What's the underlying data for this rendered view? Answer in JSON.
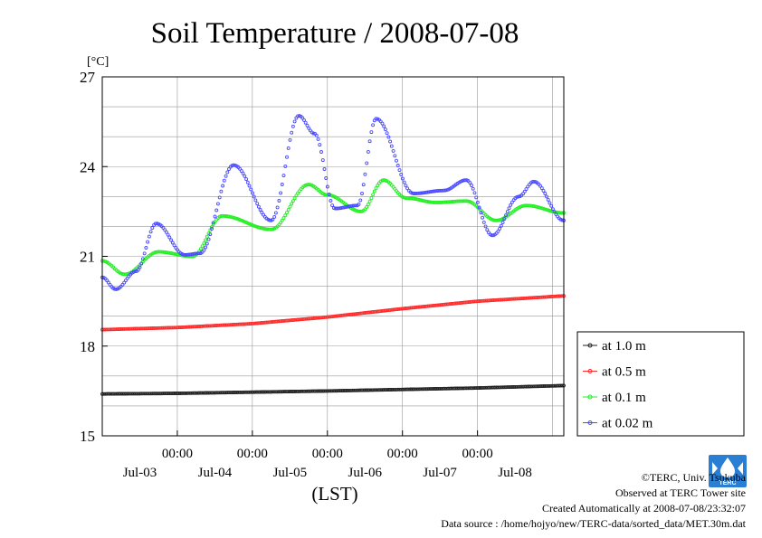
{
  "chart_data": {
    "type": "line",
    "title": "Soil Temperature / 2008-07-08",
    "ylabel": "[°C]",
    "xlabel": "(LST)",
    "ylim": [
      15,
      27
    ],
    "yticks": [
      "15",
      "18",
      "21",
      "24",
      "27"
    ],
    "xlim_days": [
      0,
      6.15
    ],
    "time_ticks": [
      "00:00",
      "00:00",
      "00:00",
      "00:00",
      "00:00"
    ],
    "date_labels": [
      "Jul-03",
      "Jul-04",
      "Jul-05",
      "Jul-06",
      "Jul-07",
      "Jul-08"
    ],
    "grid": true,
    "legend_position": "right",
    "series": [
      {
        "name": "at 1.0 m",
        "color": "#222222",
        "style": "flat",
        "x": [
          0,
          1,
          2,
          3,
          4,
          5,
          6.15
        ],
        "y": [
          16.4,
          16.42,
          16.46,
          16.5,
          16.55,
          16.6,
          16.68
        ]
      },
      {
        "name": "at 0.5 m",
        "color": "#ff2a2a",
        "style": "flat",
        "x": [
          0,
          1,
          2,
          3,
          4,
          5,
          6.15
        ],
        "y": [
          18.55,
          18.62,
          18.75,
          18.97,
          19.25,
          19.5,
          19.68
        ]
      },
      {
        "name": "at 0.1 m",
        "color": "#22ee22",
        "style": "smooth",
        "x": [
          0,
          0.3,
          0.75,
          1.2,
          1.6,
          2.25,
          2.75,
          3.0,
          3.45,
          3.75,
          4.05,
          4.45,
          4.85,
          5.25,
          5.65,
          6.15
        ],
        "y": [
          20.85,
          20.4,
          21.15,
          21.0,
          22.35,
          21.9,
          23.4,
          23.05,
          22.5,
          23.55,
          22.95,
          22.8,
          22.85,
          22.2,
          22.7,
          22.45
        ]
      },
      {
        "name": "at 0.02 m",
        "color": "#4a4aff",
        "style": "smooth",
        "x": [
          0,
          0.18,
          0.45,
          0.72,
          1.1,
          1.3,
          1.75,
          2.25,
          2.62,
          2.83,
          3.1,
          3.4,
          3.65,
          4.15,
          4.55,
          4.85,
          5.2,
          5.55,
          5.75,
          6.15
        ],
        "y": [
          20.3,
          19.9,
          20.5,
          22.1,
          21.05,
          21.1,
          24.05,
          22.2,
          25.7,
          25.1,
          22.6,
          22.7,
          25.6,
          23.1,
          23.2,
          23.55,
          21.7,
          23.0,
          23.5,
          22.2
        ]
      }
    ]
  },
  "credits": {
    "copyright": "©TERC, Univ. Tsukuba",
    "site": "Observed at TERC Tower site",
    "created": "Created Automatically at 2008-07-08/23:32:07",
    "source": "Data source : /home/hojyo/new/TERC-data/sorted_data/MET.30m.dat",
    "logo_text": "TERC"
  },
  "colors": {
    "grid": "#999999",
    "frame": "#000000"
  }
}
